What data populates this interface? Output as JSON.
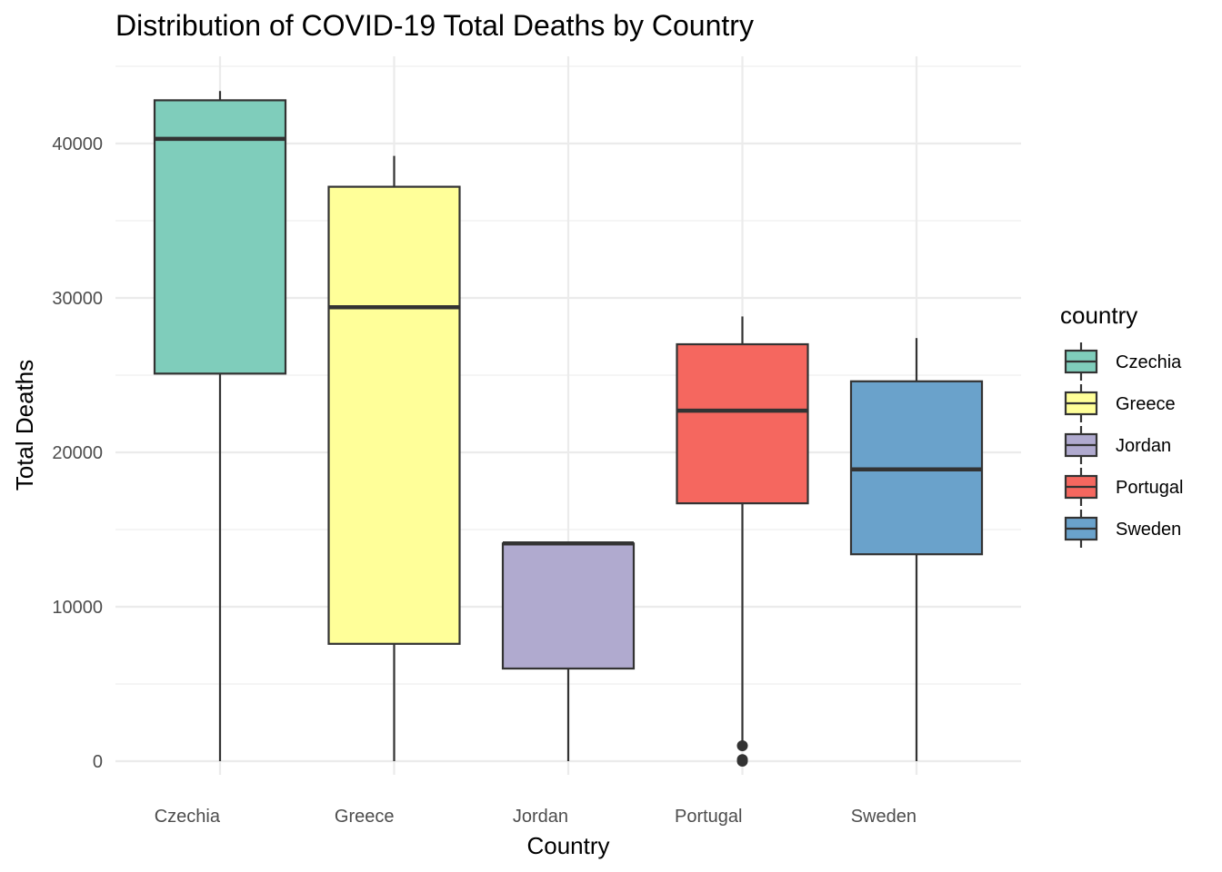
{
  "chart_data": {
    "type": "boxplot",
    "title": "Distribution of COVID-19 Total Deaths by Country",
    "xlabel": "Country",
    "ylabel": "Total Deaths",
    "ylim": [
      -2000,
      45500
    ],
    "yticks": [
      0,
      10000,
      20000,
      30000,
      40000
    ],
    "y_tick_labels": [
      "0",
      "10000",
      "20000",
      "30000",
      "40000"
    ],
    "grid": true,
    "legend": {
      "title": "country",
      "position": "right"
    },
    "categories": [
      "Czechia",
      "Greece",
      "Jordan",
      "Portugal",
      "Sweden"
    ],
    "boxes": [
      {
        "name": "Czechia",
        "color": "#7fcdbb",
        "min": 0,
        "q1": 25100,
        "median": 40300,
        "q3": 42800,
        "max": 43400,
        "outliers": []
      },
      {
        "name": "Greece",
        "color": "#ffff99",
        "min": 0,
        "q1": 7600,
        "median": 29400,
        "q3": 37200,
        "max": 39200,
        "outliers": []
      },
      {
        "name": "Jordan",
        "color": "#b0aacf",
        "min": 0,
        "q1": 6000,
        "median": 14100,
        "q3": 14100,
        "max": 14100,
        "outliers": []
      },
      {
        "name": "Portugal",
        "color": "#f5675f",
        "min": 1100,
        "q1": 16700,
        "median": 22700,
        "q3": 27000,
        "max": 28800,
        "outliers": [
          0,
          100,
          1000
        ]
      },
      {
        "name": "Sweden",
        "color": "#6aa2cb",
        "min": 0,
        "q1": 13400,
        "median": 18900,
        "q3": 24600,
        "max": 27400,
        "outliers": []
      }
    ]
  }
}
